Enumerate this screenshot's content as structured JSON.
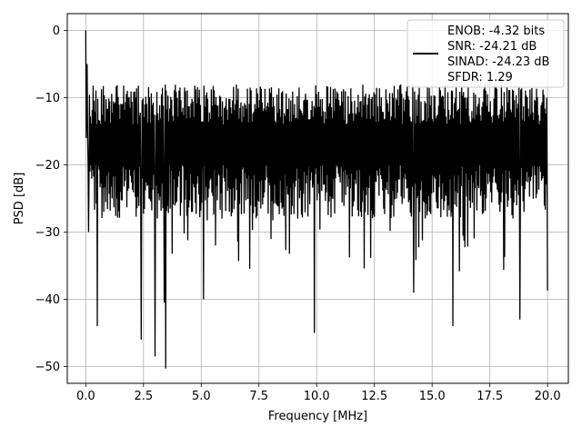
{
  "chart_data": {
    "type": "line",
    "title": "",
    "xlabel": "Frequency [MHz]",
    "ylabel": "PSD [dB]",
    "xlim": [
      -0.8,
      20.9
    ],
    "ylim": [
      -52.5,
      2.5
    ],
    "xticks": [
      0.0,
      2.5,
      5.0,
      7.5,
      10.0,
      12.5,
      15.0,
      17.5,
      20.0
    ],
    "xtick_labels": [
      "0.0",
      "2.5",
      "5.0",
      "7.5",
      "10.0",
      "12.5",
      "15.0",
      "17.5",
      "20.0"
    ],
    "yticks": [
      0,
      -10,
      -20,
      -30,
      -40,
      -50
    ],
    "ytick_labels": [
      "0",
      "−10",
      "−20",
      "−30",
      "−40",
      "−50"
    ],
    "grid": true,
    "legend": {
      "placement": "top-right",
      "lines": [
        "ENOB: -4.32 bits",
        "SNR: -24.21 dB",
        "SINAD: -24.23 dB",
        "SFDR: 1.29"
      ]
    },
    "series": [
      {
        "color": "#000000",
        "description": "dense noise-floor power spectral density, mostly between -8 and -28 dB",
        "band_upper_db": -8,
        "band_lower_db": -28,
        "x": [
          0.0,
          0.02,
          0.05,
          0.08,
          0.12,
          0.18,
          0.5,
          2.4,
          3.0,
          3.4,
          3.45,
          5.1,
          9.9,
          14.2,
          15.9,
          18.8,
          20.0
        ],
        "y": [
          0.0,
          -16.0,
          -5.0,
          -15.0,
          -30.0,
          -21.0,
          -44.0,
          -46.0,
          -48.5,
          -40.5,
          -50.3,
          -40.0,
          -45.0,
          -39.0,
          -44.0,
          -43.0,
          -38.7
        ]
      }
    ]
  }
}
